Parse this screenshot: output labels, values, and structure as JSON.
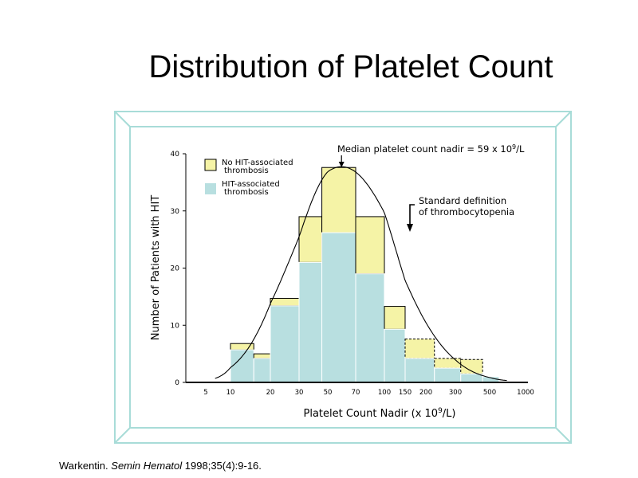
{
  "slide": {
    "title": "Distribution of Platelet Count"
  },
  "citation": {
    "author": "Warkentin.",
    "journal": "Semin Hematol",
    "details": "1998;35(4):9-16."
  },
  "colors": {
    "no_hit": "#f5f3a6",
    "hit": "#b8dfe0",
    "frame": "#a8dcd8",
    "frame_inner": "#ffffff"
  },
  "chart_data": {
    "type": "bar",
    "stacked": true,
    "xlabel_prefix": "Platelet Count Nadir (x 10",
    "xlabel_sup": "9",
    "xlabel_suffix": "/L)",
    "ylabel": "Number of Patients with HIT",
    "y_ticks": [
      "0",
      "10",
      "20",
      "30",
      "40"
    ],
    "ylim": [
      0,
      40
    ],
    "x_scale": "log",
    "x_ticks": [
      "5",
      "10",
      "20",
      "30",
      "50",
      "70",
      "100",
      "150",
      "200",
      "300",
      "500",
      "1000"
    ],
    "bins": [
      {
        "from": 10,
        "to": 15,
        "hit": 5.7,
        "total": 6.8
      },
      {
        "from": 15,
        "to": 20,
        "hit": 4.2,
        "total": 5.0
      },
      {
        "from": 20,
        "to": 30,
        "hit": 13.4,
        "total": 14.7
      },
      {
        "from": 30,
        "to": 45,
        "hit": 21.0,
        "total": 29.0
      },
      {
        "from": 45,
        "to": 70,
        "hit": 26.2,
        "total": 37.6
      },
      {
        "from": 70,
        "to": 100,
        "hit": 19.0,
        "total": 29.0
      },
      {
        "from": 100,
        "to": 150,
        "hit": 9.3,
        "total": 13.3
      },
      {
        "from": 150,
        "to": 225,
        "hit": 4.2,
        "total": 7.6
      },
      {
        "from": 225,
        "to": 325,
        "hit": 2.5,
        "total": 4.2
      },
      {
        "from": 325,
        "to": 450,
        "hit": 1.5,
        "total": 4.0
      },
      {
        "from": 450,
        "to": 600,
        "hit": 1.0,
        "total": 1.0
      }
    ],
    "dashed_bins": [
      7,
      8,
      9
    ],
    "legend": {
      "no_hit": [
        "No HIT-associated",
        "thrombosis"
      ],
      "hit": [
        "HIT-associated",
        "thrombosis"
      ],
      "placement": "top-left"
    },
    "annotations": {
      "median_prefix": "Median platelet count nadir = 59 x 10",
      "median_sup": "9",
      "median_suffix": "/L",
      "median_x": 59,
      "standard_def": [
        "Standard definition",
        "of thrombocytopenia"
      ],
      "standard_def_x": 150
    },
    "normal_curve": {
      "mean_x": 59,
      "peak_y": 37.6,
      "sd_log10": 0.33
    }
  }
}
